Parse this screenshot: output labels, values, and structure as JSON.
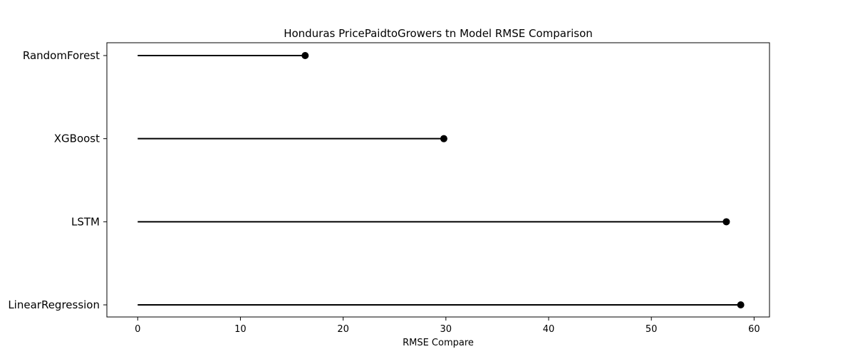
{
  "chart_data": {
    "type": "lollipop",
    "title": "Honduras PricePaidtoGrowers tn Model RMSE Comparison",
    "xlabel": "RMSE Compare",
    "ylabel": "",
    "xlim": [
      -3,
      61.5
    ],
    "xticks": [
      0,
      10,
      20,
      30,
      40,
      50,
      60
    ],
    "categories": [
      "RandomForest",
      "XGBoost",
      "LSTM",
      "LinearRegression"
    ],
    "values": [
      16.3,
      29.8,
      57.3,
      58.7
    ],
    "grid": false,
    "color": "#000000"
  }
}
